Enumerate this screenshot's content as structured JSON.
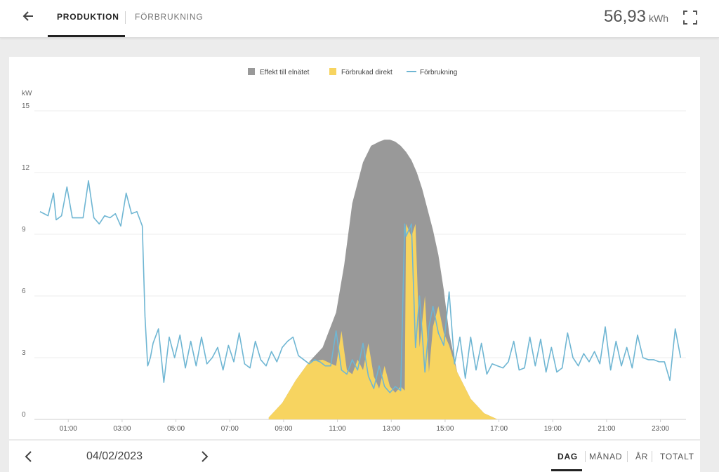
{
  "header": {
    "tabs": [
      {
        "label": "PRODUKTION",
        "active": true
      },
      {
        "label": "FÖRBRUKNING",
        "active": false
      }
    ],
    "total_value": "56,93",
    "total_unit": "kWh"
  },
  "legend": [
    {
      "label": "Effekt till elnätet",
      "color": "#999999"
    },
    {
      "label": "Förbrukad direkt",
      "color": "#f7d460"
    },
    {
      "label": "Förbrukning",
      "color": "#6fb6d3"
    }
  ],
  "footer": {
    "date": "04/02/2023",
    "ranges": [
      {
        "label": "DAG",
        "active": true
      },
      {
        "label": "MÅNAD",
        "active": false
      },
      {
        "label": "ÅR",
        "active": false
      },
      {
        "label": "TOTALT",
        "active": false
      }
    ]
  },
  "chart_data": {
    "type": "area",
    "ylabel": "kW",
    "ylim": [
      0,
      15
    ],
    "yticks": [
      "0",
      "3",
      "6",
      "9",
      "12",
      "15"
    ],
    "xlim": [
      0,
      24
    ],
    "xticks": [
      {
        "label": "01:00",
        "h": 1
      },
      {
        "label": "03:00",
        "h": 3
      },
      {
        "label": "05:00",
        "h": 5
      },
      {
        "label": "07:00",
        "h": 7
      },
      {
        "label": "09:00",
        "h": 9
      },
      {
        "label": "11:00",
        "h": 11
      },
      {
        "label": "13:00",
        "h": 13
      },
      {
        "label": "15:00",
        "h": 15
      },
      {
        "label": "17:00",
        "h": 17
      },
      {
        "label": "19:00",
        "h": 19
      },
      {
        "label": "21:00",
        "h": 21
      },
      {
        "label": "23:00",
        "h": 23
      }
    ],
    "grid": true,
    "legend_position": "top-center",
    "series": [
      {
        "name": "Effekt till elnätet",
        "kind": "area",
        "color": "#999999",
        "x": [
          8.5,
          9.0,
          9.5,
          10.0,
          10.5,
          11.0,
          11.3,
          11.6,
          12.0,
          12.3,
          12.6,
          12.8,
          13.0,
          13.2,
          13.4,
          13.6,
          13.8,
          14.0,
          14.2,
          14.4,
          14.6,
          14.8,
          15.0,
          15.2,
          15.5,
          16.0,
          16.5,
          17.0
        ],
        "y": [
          0.1,
          0.8,
          1.9,
          2.8,
          3.5,
          5.2,
          7.5,
          10.5,
          12.5,
          13.3,
          13.5,
          13.6,
          13.6,
          13.5,
          13.3,
          13.0,
          12.6,
          12.0,
          11.2,
          10.2,
          9.2,
          8.0,
          6.3,
          4.2,
          2.3,
          1.0,
          0.3,
          0.0
        ]
      },
      {
        "name": "Förbrukad direkt",
        "kind": "area",
        "color": "#f7d460",
        "x": [
          8.5,
          9.0,
          9.5,
          10.0,
          10.5,
          11.0,
          11.2,
          11.4,
          11.6,
          11.8,
          12.0,
          12.2,
          12.4,
          12.6,
          12.8,
          13.0,
          13.2,
          13.4,
          13.55,
          13.6,
          13.8,
          13.95,
          14.1,
          14.3,
          14.45,
          14.6,
          14.8,
          15.0,
          15.2,
          15.5,
          16.0,
          16.5,
          17.0
        ],
        "y": [
          0.1,
          0.8,
          1.9,
          2.8,
          2.9,
          2.6,
          4.3,
          2.4,
          2.2,
          2.9,
          2.4,
          3.7,
          2.1,
          1.5,
          2.6,
          1.6,
          1.3,
          1.6,
          1.4,
          9.5,
          8.9,
          9.5,
          3.5,
          6.0,
          2.3,
          4.5,
          5.5,
          4.2,
          3.6,
          2.3,
          1.0,
          0.3,
          0.0
        ]
      },
      {
        "name": "Förbrukning",
        "kind": "line",
        "color": "#6fb6d3",
        "x": [
          0.0,
          0.3,
          0.5,
          0.6,
          0.8,
          1.0,
          1.2,
          1.4,
          1.6,
          1.8,
          2.0,
          2.2,
          2.4,
          2.6,
          2.8,
          3.0,
          3.2,
          3.4,
          3.6,
          3.8,
          3.9,
          4.0,
          4.1,
          4.2,
          4.4,
          4.6,
          4.8,
          5.0,
          5.2,
          5.4,
          5.6,
          5.8,
          6.0,
          6.2,
          6.4,
          6.6,
          6.8,
          7.0,
          7.2,
          7.4,
          7.6,
          7.8,
          8.0,
          8.2,
          8.4,
          8.6,
          8.8,
          9.0,
          9.2,
          9.4,
          9.6,
          9.8,
          10.0,
          10.2,
          10.4,
          10.6,
          10.8,
          11.0,
          11.2,
          11.4,
          11.6,
          11.8,
          12.0,
          12.2,
          12.4,
          12.6,
          12.8,
          13.0,
          13.2,
          13.4,
          13.55,
          13.6,
          13.8,
          13.95,
          14.1,
          14.3,
          14.45,
          14.6,
          14.8,
          15.0,
          15.2,
          15.4,
          15.6,
          15.8,
          16.0,
          16.2,
          16.4,
          16.6,
          16.8,
          17.0,
          17.2,
          17.4,
          17.6,
          17.8,
          18.0,
          18.2,
          18.4,
          18.6,
          18.8,
          19.0,
          19.2,
          19.4,
          19.6,
          19.8,
          20.0,
          20.2,
          20.4,
          20.6,
          20.8,
          21.0,
          21.2,
          21.4,
          21.6,
          21.8,
          22.0,
          22.2,
          22.4,
          22.6,
          22.8,
          23.0,
          23.2,
          23.4,
          23.6,
          23.8
        ],
        "y": [
          10.1,
          9.9,
          11.0,
          9.7,
          9.9,
          11.3,
          9.8,
          9.8,
          9.8,
          11.6,
          9.8,
          9.5,
          9.9,
          9.8,
          10.0,
          9.4,
          11.0,
          10.0,
          10.1,
          9.4,
          5.0,
          2.6,
          3.0,
          3.7,
          4.4,
          1.8,
          4.0,
          3.0,
          4.1,
          2.5,
          3.8,
          2.6,
          4.0,
          2.7,
          3.0,
          3.5,
          2.4,
          3.6,
          2.8,
          4.2,
          2.7,
          2.5,
          3.8,
          2.9,
          2.6,
          3.3,
          2.8,
          3.5,
          3.8,
          4.0,
          3.1,
          2.9,
          2.7,
          2.9,
          2.8,
          2.6,
          2.6,
          4.3,
          2.4,
          2.2,
          2.9,
          2.4,
          3.7,
          2.1,
          1.5,
          2.6,
          1.6,
          1.3,
          1.6,
          1.4,
          9.5,
          8.9,
          9.5,
          3.5,
          6.0,
          2.3,
          4.5,
          5.5,
          4.2,
          3.6,
          6.2,
          2.7,
          4.0,
          2.0,
          4.0,
          2.4,
          3.7,
          2.2,
          2.7,
          2.6,
          2.5,
          2.8,
          3.8,
          2.4,
          2.5,
          4.0,
          2.6,
          3.9,
          2.3,
          3.5,
          2.3,
          2.5,
          4.2,
          3.0,
          2.6,
          3.2,
          2.8,
          3.3,
          2.7,
          4.5,
          2.4,
          3.8,
          2.6,
          3.5,
          2.5,
          4.1,
          3.0,
          2.9,
          2.9,
          2.8,
          2.8,
          1.9,
          4.4,
          3.0
        ]
      }
    ]
  }
}
